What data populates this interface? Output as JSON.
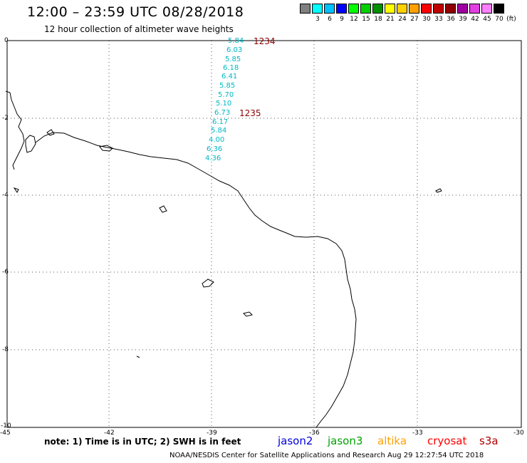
{
  "title": "12:00 – 23:59 UTC 08/28/2018",
  "subtitle": "12 hour collection of altimeter wave heights",
  "legend": {
    "unit": "(ft)",
    "bins": [
      {
        "label": "",
        "color": "#808080"
      },
      {
        "label": "3",
        "color": "#00ffff"
      },
      {
        "label": "6",
        "color": "#00c0ff"
      },
      {
        "label": "9",
        "color": "#0000ff"
      },
      {
        "label": "12",
        "color": "#00ff00"
      },
      {
        "label": "15",
        "color": "#00d000"
      },
      {
        "label": "18",
        "color": "#009000"
      },
      {
        "label": "21",
        "color": "#ffff00"
      },
      {
        "label": "24",
        "color": "#ffd000"
      },
      {
        "label": "27",
        "color": "#ffa000"
      },
      {
        "label": "30",
        "color": "#ff0000"
      },
      {
        "label": "33",
        "color": "#c00000"
      },
      {
        "label": "36",
        "color": "#900000"
      },
      {
        "label": "39",
        "color": "#a000a0"
      },
      {
        "label": "42",
        "color": "#e040e0"
      },
      {
        "label": "45",
        "color": "#ff80ff"
      },
      {
        "label": "70",
        "color": "#000000"
      }
    ]
  },
  "lat_labels": [
    "0",
    "-2",
    "-4",
    "-6",
    "-8",
    "-10"
  ],
  "lon_labels": [
    "-45",
    "-42",
    "-39",
    "-36",
    "-33",
    "-30"
  ],
  "wave_heights": [
    "5.84",
    "6.03",
    "5.85",
    "6.18",
    "6.41",
    "5.85",
    "5.70",
    "5.10",
    "6.73",
    "6.17",
    "5.84",
    "4.00",
    "6.36",
    "4.36"
  ],
  "passes": [
    {
      "label": "1234"
    },
    {
      "label": "1235"
    }
  ],
  "note": "note: 1) Time is in UTC; 2) SWH is in feet",
  "satellites": [
    {
      "name": "jason2",
      "color": "#0000e0"
    },
    {
      "name": "jason3",
      "color": "#00a000"
    },
    {
      "name": "altika",
      "color": "#ffa000"
    },
    {
      "name": "cryosat",
      "color": "#ff0000"
    },
    {
      "name": "s3a",
      "color": "#b00000"
    }
  ],
  "credit": "NOAA/NESDIS Center for Satellite Applications and Research    Aug 29 12:27:54 UTC 2018"
}
